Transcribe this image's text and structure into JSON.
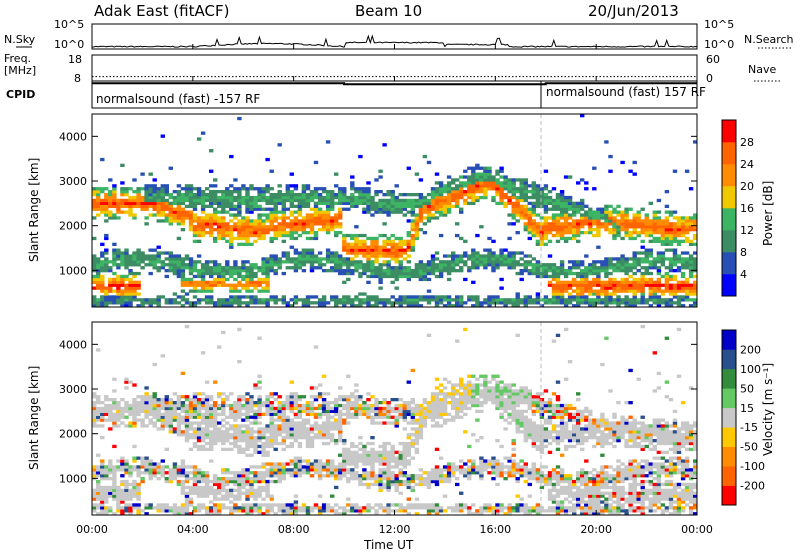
{
  "header": {
    "station": "Adak East (fitACF)",
    "beam": "Beam 10",
    "date": "20/Jun/2013"
  },
  "left_labels": {
    "nsky": "N.Sky",
    "freq_line1": "Freq.",
    "freq_line2": "[MHz]",
    "cpid": "CPID"
  },
  "right_labels": {
    "nsearch": "N.Search",
    "nave": "Nave"
  },
  "colors": {
    "power_scale": [
      "#0000ff",
      "#2850b4",
      "#3c8c64",
      "#3cb464",
      "#f0c800",
      "#ff8c00",
      "#ff6400",
      "#ff0000"
    ],
    "velocity_scale": [
      "#ff0000",
      "#ff6400",
      "#ff8c00",
      "#ffc800",
      "#c8c8c8",
      "#64c864",
      "#328c3c",
      "#28508c",
      "#0000c8"
    ]
  },
  "chart_data": [
    {
      "type": "line",
      "name_label": "N.Sky",
      "y_ticks_left": [
        "10^5",
        "10^0"
      ],
      "y_ticks_right": [
        "10^5",
        "10^0"
      ],
      "x_range": [
        0,
        24
      ]
    },
    {
      "type": "line",
      "y_ticks_left": [
        "18",
        "8"
      ],
      "y_ticks_right": [
        "60",
        "0"
      ],
      "frequency_segments": [
        {
          "start": 0,
          "end": 10,
          "value": 11
        },
        {
          "start": 10,
          "end": 18,
          "value": 10.6
        },
        {
          "start": 18,
          "end": 24,
          "value": 11
        }
      ],
      "nave": 10
    },
    {
      "type": "table",
      "cpid_segments": [
        {
          "start": 0,
          "end": 18,
          "label": "normalsound (fast) -157 RF"
        },
        {
          "start": 18,
          "end": 24,
          "label": "normalsound (fast) 157 RF"
        }
      ]
    },
    {
      "type": "heatmap",
      "parameter": "Power",
      "ylabel": "Slant Range [km]",
      "yticks": [
        "1000",
        "2000",
        "3000",
        "4000"
      ],
      "ylim": [
        180,
        4500
      ],
      "colorbar_label": "Power [dB]",
      "colorbar_ticks": [
        "4",
        "8",
        "12",
        "16",
        "20",
        "24",
        "28"
      ],
      "colorbar_range": [
        0,
        32
      ]
    },
    {
      "type": "heatmap",
      "parameter": "Velocity",
      "ylabel": "Slant Range [km]",
      "yticks": [
        "1000",
        "2000",
        "3000",
        "4000"
      ],
      "ylim": [
        180,
        4500
      ],
      "colorbar_label": "Velocity [m s⁻¹]",
      "colorbar_ticks": [
        "-200",
        "-100",
        "-50",
        "-15",
        "15",
        "50",
        "100",
        "200"
      ],
      "xlabel": "Time UT",
      "xticks": [
        "00:00",
        "04:00",
        "08:00",
        "12:00",
        "16:00",
        "20:00",
        "00:00"
      ],
      "x_range": [
        0,
        24
      ]
    }
  ]
}
